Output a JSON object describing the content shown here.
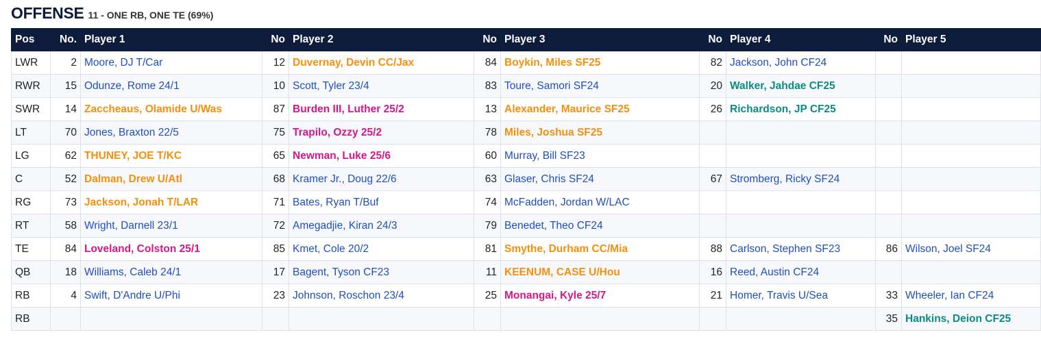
{
  "header": {
    "title": "OFFENSE",
    "subtitle": "11 - ONE RB, ONE TE (69%)"
  },
  "columns": [
    "Pos",
    "No.",
    "Player 1",
    "No",
    "Player 2",
    "No",
    "Player 3",
    "No",
    "Player 4",
    "No",
    "Player 5"
  ],
  "colors": {
    "blue": "#1f4fbf",
    "orange": "#f5900f",
    "magenta": "#d4178a",
    "teal": "#0a8c86",
    "header_bg": "#0e1c3c"
  },
  "rows": [
    {
      "pos": "LWR",
      "slots": [
        {
          "no": "2",
          "name": "Moore, DJ T/Car",
          "color": "blue"
        },
        {
          "no": "12",
          "name": "Duvernay, Devin CC/Jax",
          "color": "orange"
        },
        {
          "no": "84",
          "name": "Boykin, Miles SF25",
          "color": "orange"
        },
        {
          "no": "82",
          "name": "Jackson, John CF24",
          "color": "blue"
        },
        {
          "no": "",
          "name": "",
          "color": "blue"
        }
      ]
    },
    {
      "pos": "RWR",
      "slots": [
        {
          "no": "15",
          "name": "Odunze, Rome 24/1",
          "color": "blue"
        },
        {
          "no": "10",
          "name": "Scott, Tyler 23/4",
          "color": "blue"
        },
        {
          "no": "83",
          "name": "Toure, Samori SF24",
          "color": "blue"
        },
        {
          "no": "20",
          "name": "Walker, Jahdae CF25",
          "color": "teal"
        },
        {
          "no": "",
          "name": "",
          "color": "blue"
        }
      ]
    },
    {
      "pos": "SWR",
      "slots": [
        {
          "no": "14",
          "name": "Zaccheaus, Olamide U/Was",
          "color": "orange"
        },
        {
          "no": "87",
          "name": "Burden III, Luther 25/2",
          "color": "magenta"
        },
        {
          "no": "13",
          "name": "Alexander, Maurice SF25",
          "color": "orange"
        },
        {
          "no": "26",
          "name": "Richardson, JP CF25",
          "color": "teal"
        },
        {
          "no": "",
          "name": "",
          "color": "blue"
        }
      ]
    },
    {
      "pos": "LT",
      "slots": [
        {
          "no": "70",
          "name": "Jones, Braxton 22/5",
          "color": "blue"
        },
        {
          "no": "75",
          "name": "Trapilo, Ozzy 25/2",
          "color": "magenta"
        },
        {
          "no": "78",
          "name": "Miles, Joshua SF25",
          "color": "orange"
        },
        {
          "no": "",
          "name": "",
          "color": "blue"
        },
        {
          "no": "",
          "name": "",
          "color": "blue"
        }
      ]
    },
    {
      "pos": "LG",
      "slots": [
        {
          "no": "62",
          "name": "THUNEY, JOE T/KC",
          "color": "orange"
        },
        {
          "no": "65",
          "name": "Newman, Luke 25/6",
          "color": "magenta"
        },
        {
          "no": "60",
          "name": "Murray, Bill SF23",
          "color": "blue"
        },
        {
          "no": "",
          "name": "",
          "color": "blue"
        },
        {
          "no": "",
          "name": "",
          "color": "blue"
        }
      ]
    },
    {
      "pos": "C",
      "slots": [
        {
          "no": "52",
          "name": "Dalman, Drew U/Atl",
          "color": "orange"
        },
        {
          "no": "68",
          "name": "Kramer Jr., Doug 22/6",
          "color": "blue"
        },
        {
          "no": "63",
          "name": "Glaser, Chris SF24",
          "color": "blue"
        },
        {
          "no": "67",
          "name": "Stromberg, Ricky SF24",
          "color": "blue"
        },
        {
          "no": "",
          "name": "",
          "color": "blue"
        }
      ]
    },
    {
      "pos": "RG",
      "slots": [
        {
          "no": "73",
          "name": "Jackson, Jonah T/LAR",
          "color": "orange"
        },
        {
          "no": "71",
          "name": "Bates, Ryan T/Buf",
          "color": "blue"
        },
        {
          "no": "74",
          "name": "McFadden, Jordan W/LAC",
          "color": "blue"
        },
        {
          "no": "",
          "name": "",
          "color": "blue"
        },
        {
          "no": "",
          "name": "",
          "color": "blue"
        }
      ]
    },
    {
      "pos": "RT",
      "slots": [
        {
          "no": "58",
          "name": "Wright, Darnell 23/1",
          "color": "blue"
        },
        {
          "no": "72",
          "name": "Amegadjie, Kiran 24/3",
          "color": "blue"
        },
        {
          "no": "79",
          "name": "Benedet, Theo CF24",
          "color": "blue"
        },
        {
          "no": "",
          "name": "",
          "color": "blue"
        },
        {
          "no": "",
          "name": "",
          "color": "blue"
        }
      ]
    },
    {
      "pos": "TE",
      "slots": [
        {
          "no": "84",
          "name": "Loveland, Colston 25/1",
          "color": "magenta"
        },
        {
          "no": "85",
          "name": "Kmet, Cole 20/2",
          "color": "blue"
        },
        {
          "no": "81",
          "name": "Smythe, Durham CC/Mia",
          "color": "orange"
        },
        {
          "no": "88",
          "name": "Carlson, Stephen SF23",
          "color": "blue"
        },
        {
          "no": "86",
          "name": "Wilson, Joel SF24",
          "color": "blue"
        }
      ]
    },
    {
      "pos": "QB",
      "slots": [
        {
          "no": "18",
          "name": "Williams, Caleb 24/1",
          "color": "blue"
        },
        {
          "no": "17",
          "name": "Bagent, Tyson CF23",
          "color": "blue"
        },
        {
          "no": "11",
          "name": "KEENUM, CASE U/Hou",
          "color": "orange"
        },
        {
          "no": "16",
          "name": "Reed, Austin CF24",
          "color": "blue"
        },
        {
          "no": "",
          "name": "",
          "color": "blue"
        }
      ]
    },
    {
      "pos": "RB",
      "slots": [
        {
          "no": "4",
          "name": "Swift, D'Andre U/Phi",
          "color": "blue"
        },
        {
          "no": "23",
          "name": "Johnson, Roschon 23/4",
          "color": "blue"
        },
        {
          "no": "25",
          "name": "Monangai, Kyle 25/7",
          "color": "magenta"
        },
        {
          "no": "21",
          "name": "Homer, Travis U/Sea",
          "color": "blue"
        },
        {
          "no": "33",
          "name": "Wheeler, Ian CF24",
          "color": "blue"
        }
      ]
    },
    {
      "pos": "RB",
      "slots": [
        {
          "no": "",
          "name": "",
          "color": "blue"
        },
        {
          "no": "",
          "name": "",
          "color": "blue"
        },
        {
          "no": "",
          "name": "",
          "color": "blue"
        },
        {
          "no": "",
          "name": "",
          "color": "blue"
        },
        {
          "no": "35",
          "name": "Hankins, Deion CF25",
          "color": "teal"
        }
      ]
    }
  ]
}
